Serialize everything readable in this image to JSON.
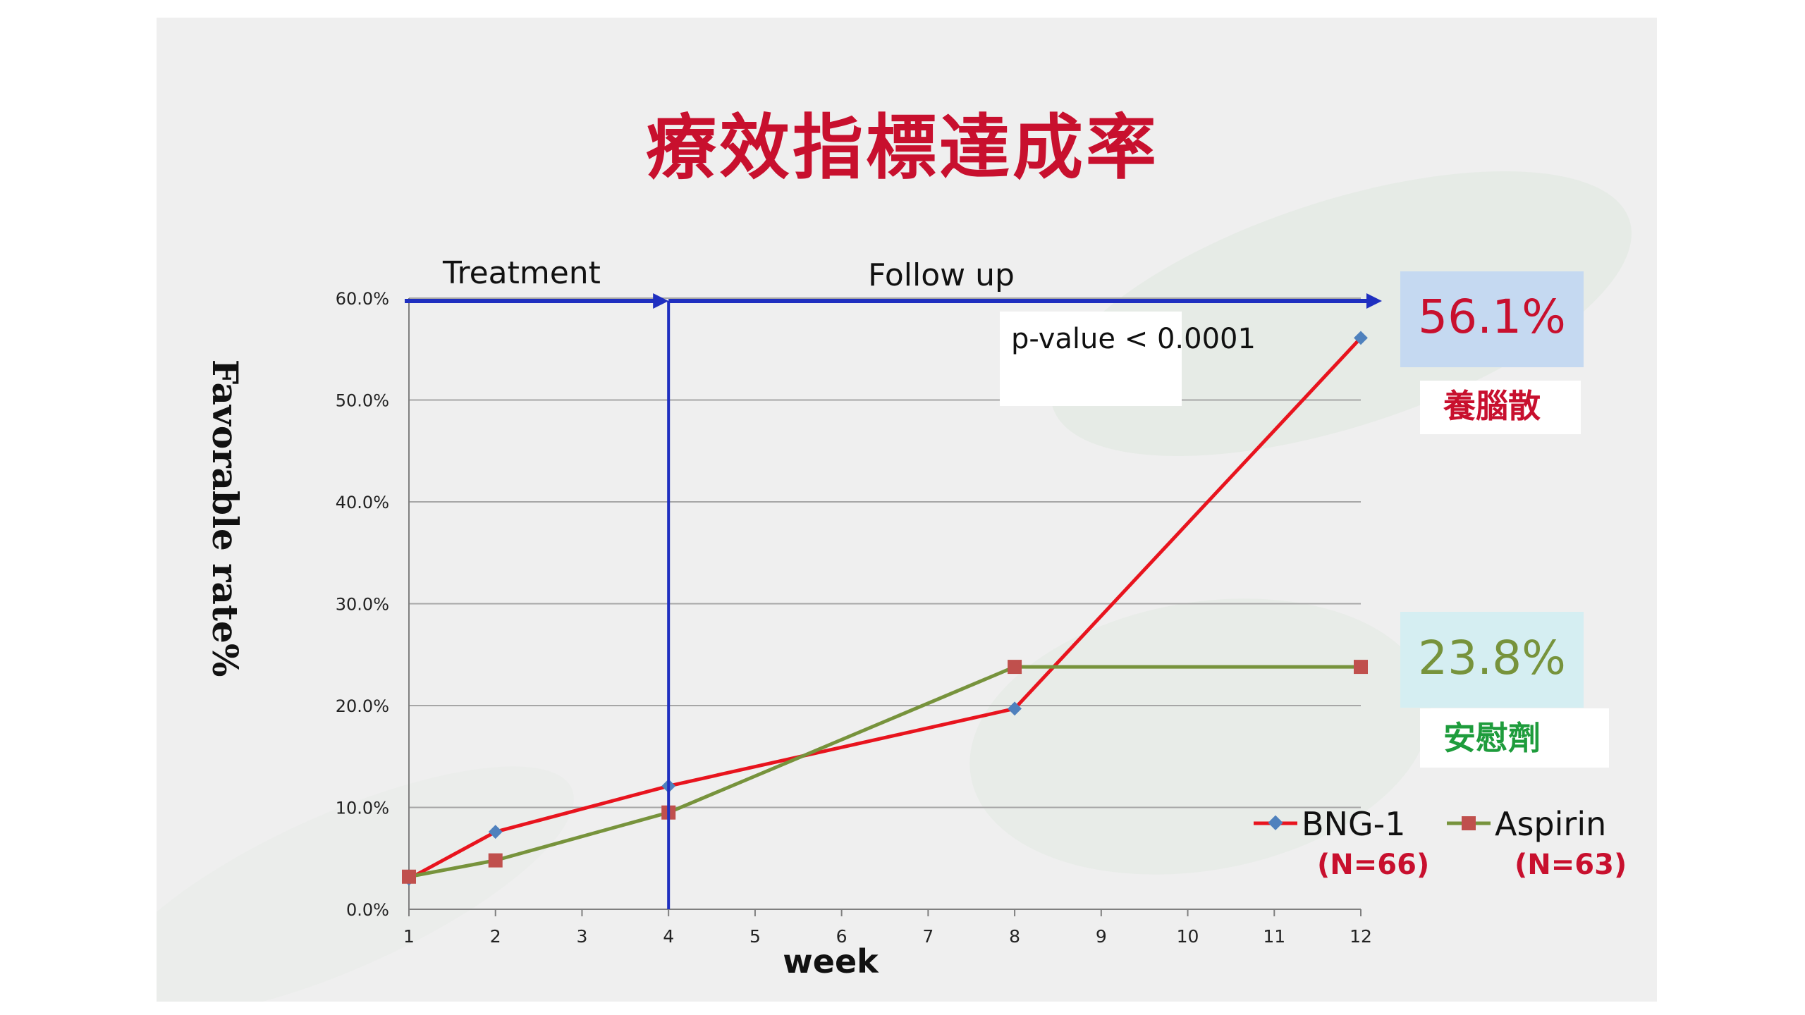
{
  "title": "療效指標達成率",
  "phases": {
    "treatment": "Treatment",
    "follow_up": "Follow up"
  },
  "p_value": "p-value < 0.0001",
  "callouts": {
    "bng": {
      "value": "56.1%",
      "label": "養腦散"
    },
    "aspirin": {
      "value": "23.8%",
      "label": "安慰劑"
    }
  },
  "legend": [
    {
      "name": "BNG-1",
      "n": "(N=66)"
    },
    {
      "name": "Aspirin",
      "n": "(N=63)"
    }
  ],
  "colors": {
    "bng": "#e8141e",
    "aspirin": "#77933c",
    "arrow": "#1f2fc0",
    "title": "#c8102e",
    "bng_marker": "#4f81bd",
    "aspirin_marker": "#c0504d",
    "callout_bng_bg": "#c5d9f1",
    "callout_aspirin_bg": "#d5eef2",
    "callout_label_red": "#c8102e",
    "callout_label_green": "#1e9c3c"
  },
  "chart_data": {
    "type": "line",
    "title": "",
    "xlabel": "week",
    "ylabel": "Favorable rate%",
    "x_ticks": [
      1,
      2,
      3,
      4,
      5,
      6,
      7,
      8,
      9,
      10,
      11,
      12
    ],
    "y_ticks": [
      "0.0%",
      "10.0%",
      "20.0%",
      "30.0%",
      "40.0%",
      "50.0%",
      "60.0%"
    ],
    "ylim": [
      0,
      60
    ],
    "xlim": [
      1,
      12
    ],
    "grid": true,
    "legend_position": "bottom-right",
    "series": [
      {
        "name": "BNG-1",
        "x": [
          1,
          2,
          4,
          8,
          12
        ],
        "y": [
          3.0,
          7.6,
          12.1,
          19.7,
          56.1
        ],
        "marker": "diamond"
      },
      {
        "name": "Aspirin",
        "x": [
          1,
          2,
          4,
          8,
          12
        ],
        "y": [
          3.2,
          4.8,
          9.5,
          23.8,
          23.8
        ],
        "marker": "square"
      }
    ],
    "phase_divider_week": 4
  }
}
